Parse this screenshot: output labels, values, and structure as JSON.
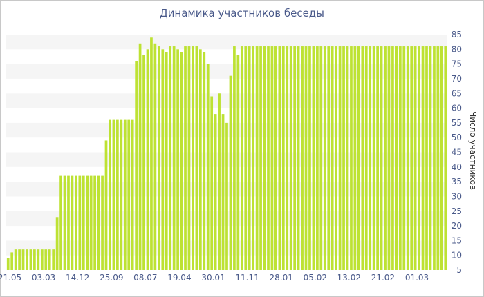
{
  "chart_data": {
    "type": "bar",
    "title": "Динамика участников беседы",
    "ylabel": "Число участников",
    "xlabel": "",
    "ylim": [
      5,
      85
    ],
    "yticks": [
      5,
      10,
      15,
      20,
      25,
      30,
      35,
      40,
      45,
      50,
      55,
      60,
      65,
      70,
      75,
      80,
      85
    ],
    "xtick_labels": [
      "21.05",
      "03.03",
      "14.12",
      "25.09",
      "08.07",
      "19.04",
      "30.01",
      "11.11",
      "28.01",
      "05.02",
      "13.02",
      "21.02",
      "01.03"
    ],
    "grid": "horizontal bands",
    "legend": "none",
    "colors": {
      "bar": "#bde233",
      "band": "#f5f5f5",
      "title": "#4a5a8a",
      "tick_label": "#4a5a8a"
    },
    "series": [
      {
        "values": [
          9,
          11,
          12,
          12,
          12,
          12,
          12,
          12,
          12,
          12,
          12,
          12,
          12,
          23,
          37,
          37,
          37,
          37,
          37,
          37,
          37,
          37,
          37,
          37,
          37,
          37,
          49,
          56,
          56,
          56,
          56,
          56,
          56,
          56,
          76,
          82,
          78,
          80,
          84,
          82,
          81,
          80,
          79,
          81,
          81,
          80,
          79,
          81,
          81,
          81,
          81,
          80,
          79,
          75,
          64,
          58,
          65,
          58,
          55,
          71,
          81,
          78,
          81,
          81,
          81,
          81,
          81,
          81,
          81,
          81,
          81,
          81,
          81,
          81,
          81,
          81,
          81,
          81,
          81,
          81,
          81,
          81,
          81,
          81,
          81,
          81,
          81,
          81,
          81,
          81,
          81,
          81,
          81,
          81,
          81,
          81,
          81,
          81,
          81,
          81,
          81,
          81,
          81,
          81,
          81,
          81,
          81,
          81,
          81,
          81,
          81,
          81,
          81,
          81,
          81,
          81,
          81
        ]
      }
    ]
  }
}
